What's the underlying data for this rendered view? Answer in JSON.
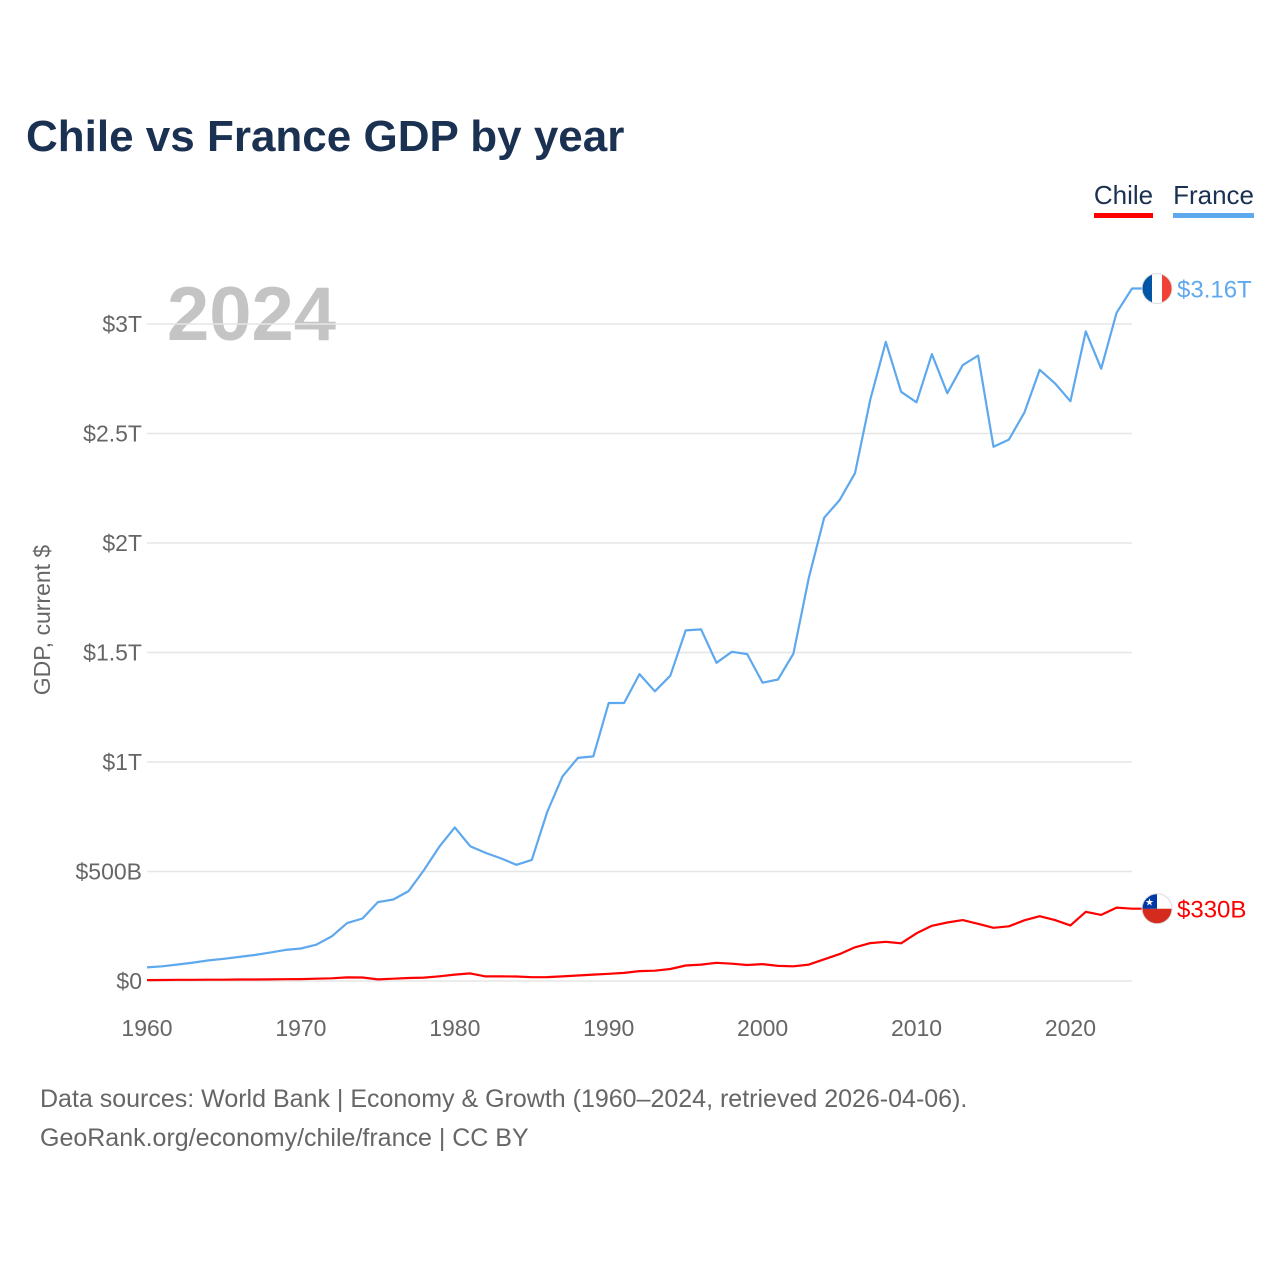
{
  "chart_data": {
    "type": "line",
    "title": "Chile vs France GDP by year",
    "xlabel": "",
    "ylabel": "GDP, current $",
    "xlim": [
      1960,
      2024
    ],
    "ylim": [
      0,
      3.3
    ],
    "y_unit": "trillion USD",
    "grid": true,
    "legend_placement": "top-right",
    "year_overlay": "2024",
    "x_ticks": [
      1960,
      1970,
      1980,
      1990,
      2000,
      2010,
      2020
    ],
    "x_tick_labels": [
      "1960",
      "1970",
      "1980",
      "1990",
      "2000",
      "2010",
      "2020"
    ],
    "y_ticks": [
      0,
      0.5,
      1,
      1.5,
      2,
      2.5,
      3
    ],
    "y_tick_labels": [
      "$0",
      "$500B",
      "$1T",
      "$1.5T",
      "$2T",
      "$2.5T",
      "$3T"
    ],
    "x": [
      1960,
      1961,
      1962,
      1963,
      1964,
      1965,
      1966,
      1967,
      1968,
      1969,
      1970,
      1971,
      1972,
      1973,
      1974,
      1975,
      1976,
      1977,
      1978,
      1979,
      1980,
      1981,
      1982,
      1983,
      1984,
      1985,
      1986,
      1987,
      1988,
      1989,
      1990,
      1991,
      1992,
      1993,
      1994,
      1995,
      1996,
      1997,
      1998,
      1999,
      2000,
      2001,
      2002,
      2003,
      2004,
      2005,
      2006,
      2007,
      2008,
      2009,
      2010,
      2011,
      2012,
      2013,
      2014,
      2015,
      2016,
      2017,
      2018,
      2019,
      2020,
      2021,
      2022,
      2023,
      2024
    ],
    "series": [
      {
        "name": "Chile",
        "color": "#ff0000",
        "end_label": "$330B",
        "values": [
          0.0041,
          0.0046,
          0.0053,
          0.0056,
          0.0058,
          0.0059,
          0.0069,
          0.007,
          0.0072,
          0.0082,
          0.0088,
          0.0106,
          0.0123,
          0.0164,
          0.0159,
          0.0073,
          0.0103,
          0.0136,
          0.0157,
          0.0215,
          0.029,
          0.0345,
          0.021,
          0.021,
          0.0205,
          0.0175,
          0.018,
          0.021,
          0.025,
          0.029,
          0.033,
          0.037,
          0.045,
          0.047,
          0.055,
          0.071,
          0.075,
          0.083,
          0.079,
          0.073,
          0.077,
          0.069,
          0.067,
          0.075,
          0.099,
          0.123,
          0.154,
          0.173,
          0.179,
          0.172,
          0.218,
          0.252,
          0.267,
          0.278,
          0.261,
          0.243,
          0.25,
          0.277,
          0.296,
          0.278,
          0.254,
          0.316,
          0.302,
          0.335,
          0.33
        ]
      },
      {
        "name": "France",
        "color": "#5ea8ee",
        "end_label": "$3.16T",
        "values": [
          0.0622,
          0.0673,
          0.0753,
          0.084,
          0.094,
          0.1015,
          0.11,
          0.1189,
          0.1298,
          0.1419,
          0.1485,
          0.1659,
          0.2035,
          0.2644,
          0.2856,
          0.3604,
          0.3723,
          0.4103,
          0.5067,
          0.6135,
          0.7013,
          0.6156,
          0.5849,
          0.5599,
          0.5307,
          0.5531,
          0.7715,
          0.9342,
          1.0188,
          1.0255,
          1.2692,
          1.2693,
          1.4015,
          1.3228,
          1.3939,
          1.6011,
          1.6057,
          1.4529,
          1.5031,
          1.4926,
          1.3622,
          1.3765,
          1.4943,
          1.8405,
          2.1157,
          2.1961,
          2.3186,
          2.6572,
          2.9184,
          2.6902,
          2.6426,
          2.8627,
          2.6838,
          2.8119,
          2.856,
          2.4392,
          2.4723,
          2.5952,
          2.7909,
          2.7289,
          2.6474,
          2.9664,
          2.796,
          3.0518,
          3.1621
        ]
      }
    ]
  },
  "footer": {
    "line1": "Data sources: World Bank | Economy & Growth (1960–2024, retrieved 2026-04-06).",
    "line2": "GeoRank.org/economy/chile/france | CC BY"
  }
}
